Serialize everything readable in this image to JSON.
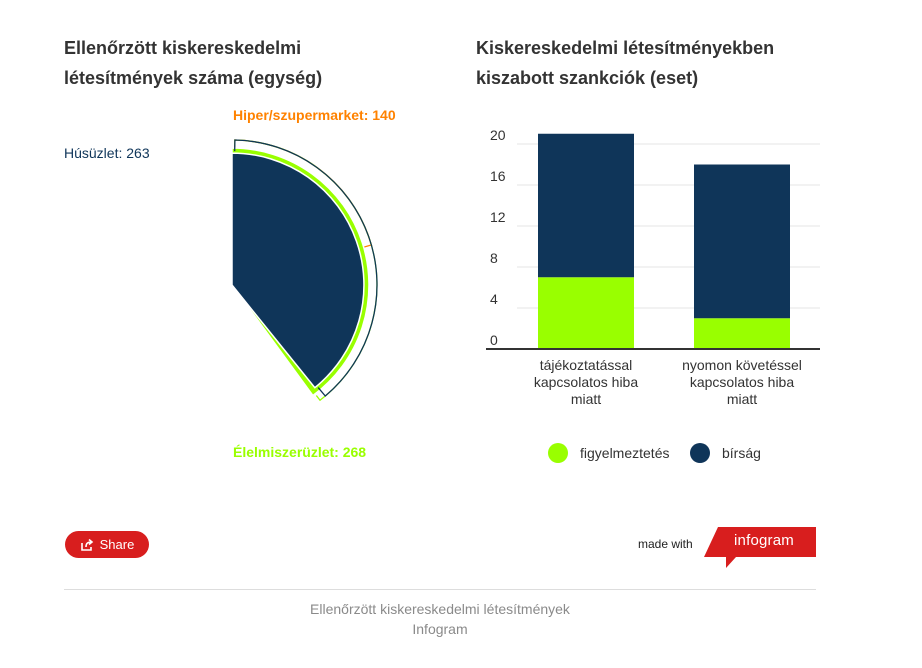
{
  "charts": {
    "pie_title": "Ellenőrzött kiskereskedelmi létesítmények száma (egység)",
    "bar_title": "Kiskereskedelmi létesítményekben kiszabott szankciók (eset)"
  },
  "chart_data": [
    {
      "type": "pie",
      "title": "Ellenőrzött kiskereskedelmi létesítmények száma (egység)",
      "slices": [
        {
          "label": "Hiper/szupermarket",
          "value": 140,
          "color": "#ff8200",
          "label_text": "Hiper/szupermarket: 140"
        },
        {
          "label": "Élelmiszerüzlet",
          "value": 268,
          "color": "#99ff00",
          "label_text": "Élelmiszerüzlet: 268"
        },
        {
          "label": "Húsüzlet",
          "value": 263,
          "color": "#0f3559",
          "label_text": "Húsüzlet: 263"
        }
      ]
    },
    {
      "type": "bar",
      "stacked": true,
      "title": "Kiskereskedelmi létesítményekben kiszabott szankciók (eset)",
      "categories": [
        [
          "tájékoztatással",
          "kapcsolatos hiba",
          "miatt"
        ],
        [
          "nyomon követéssel",
          "kapcsolatos hiba",
          "miatt"
        ]
      ],
      "series": [
        {
          "name": "figyelmeztetés",
          "values": [
            7,
            3
          ],
          "color": "#99ff00"
        },
        {
          "name": "bírság",
          "values": [
            14,
            15
          ],
          "color": "#0f3559"
        }
      ],
      "ylim": [
        0,
        20
      ],
      "yticks": [
        "0",
        "4",
        "8",
        "12",
        "16",
        "20"
      ],
      "grid": true,
      "legend": "bottom"
    }
  ],
  "footer": {
    "share_label": "Share",
    "share_icon": "share-icon",
    "made_with": "made with",
    "brand": "infogram",
    "caption_line1": "Ellenőrzött kiskereskedelmi létesítmények",
    "caption_line2": "Infogram"
  }
}
